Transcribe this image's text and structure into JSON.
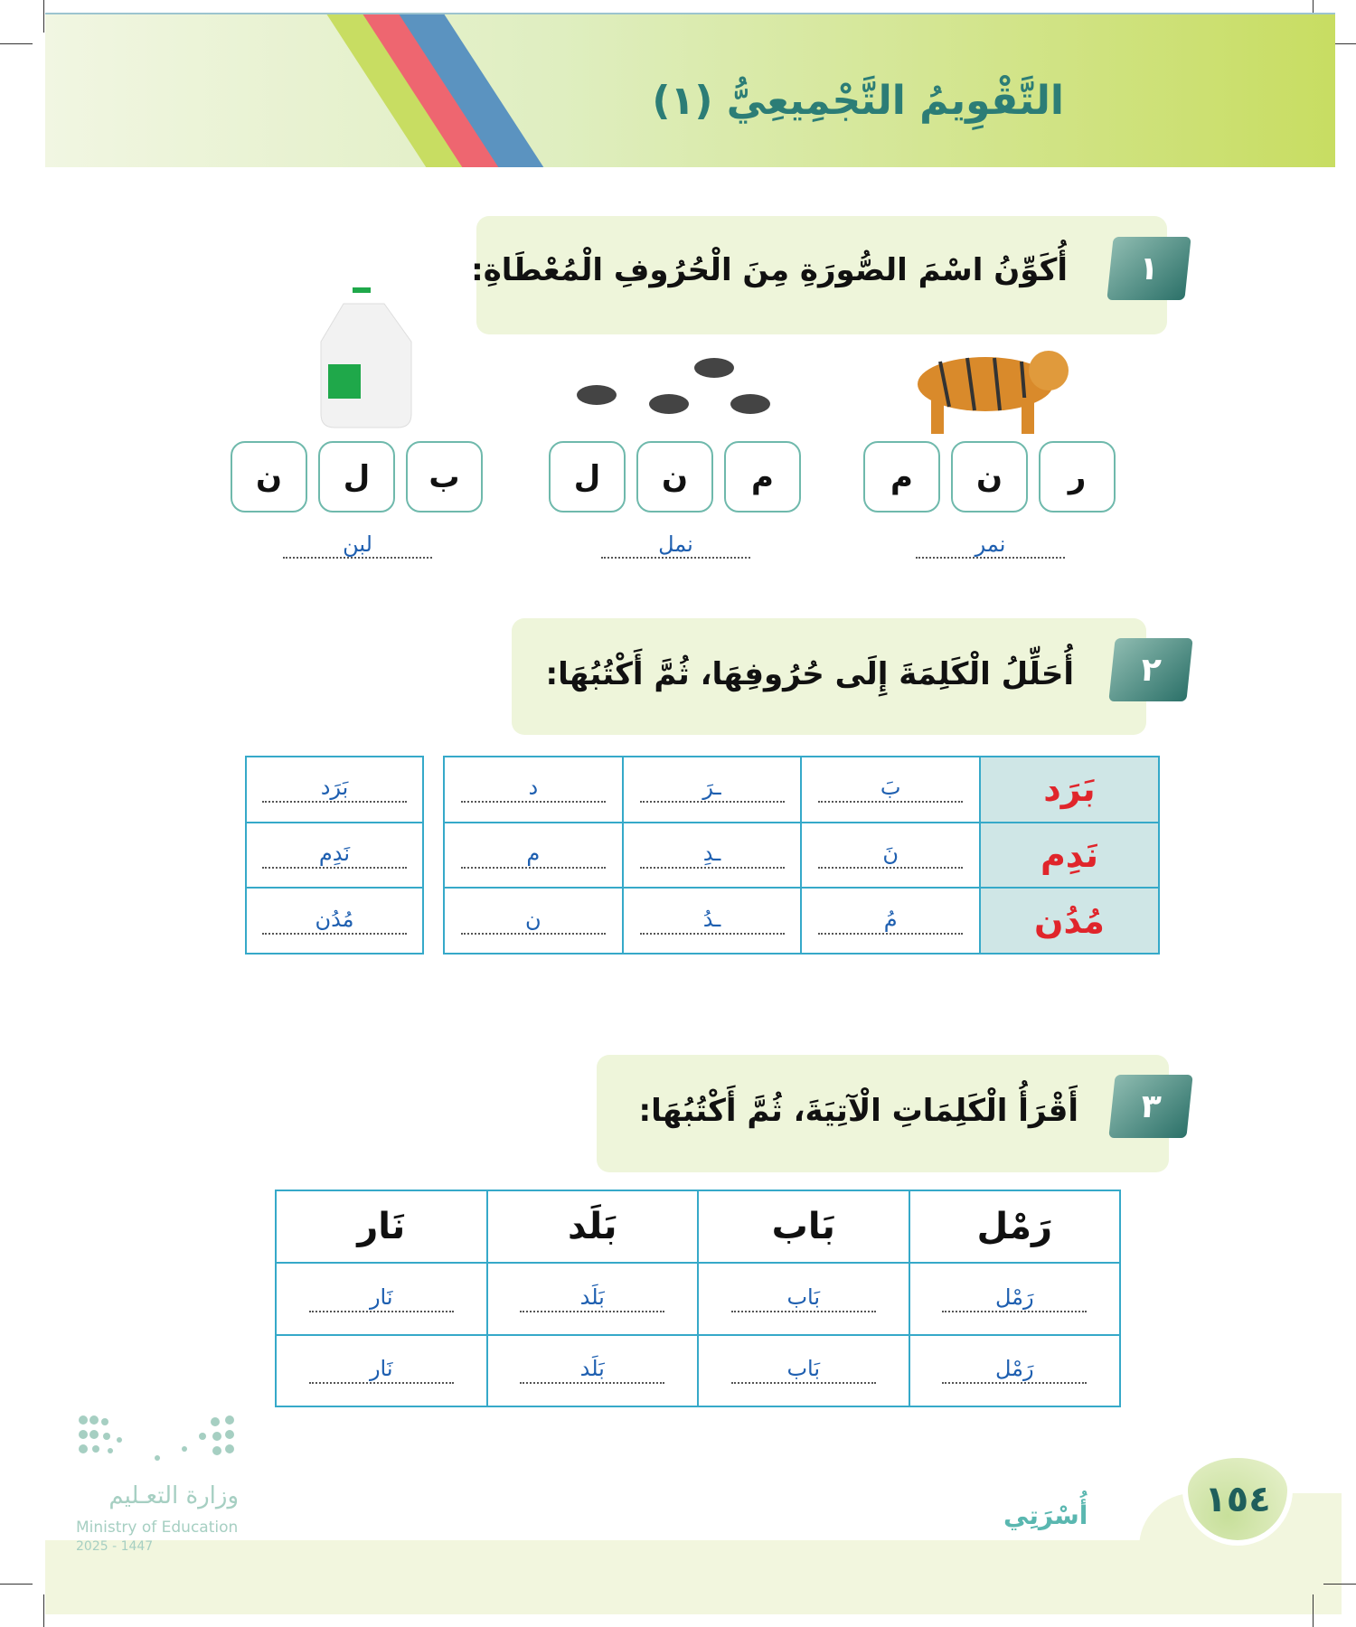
{
  "header": {
    "title": "التَّقْوِيمُ التَّجْمِيعِيُّ (١)"
  },
  "q1": {
    "number": "١",
    "instruction": "أُكَوِّنُ اسْمَ الصُّورَةِ مِنَ الْحُرُوفِ الْمُعْطَاةِ:",
    "groups": [
      {
        "picture": "tiger",
        "letters": [
          "ر",
          "ن",
          "م"
        ],
        "answer": "نمر"
      },
      {
        "picture": "ants",
        "letters": [
          "م",
          "ن",
          "ل"
        ],
        "answer": "نمل"
      },
      {
        "picture": "milk-jug",
        "letters": [
          "ب",
          "ل",
          "ن"
        ],
        "answer": "لبن"
      }
    ]
  },
  "q2": {
    "number": "٢",
    "instruction": "أُحَلِّلُ الْكَلِمَةَ إِلَى حُرُوفِهَا، ثُمَّ أَكْتُبُهَا:",
    "rows": [
      {
        "word": "بَرَد",
        "letters": [
          "بَ",
          "ـرَ",
          "د"
        ],
        "written": "بَرَد"
      },
      {
        "word": "نَدِم",
        "letters": [
          "نَ",
          "ـدِ",
          "م"
        ],
        "written": "نَدِم"
      },
      {
        "word": "مُدُن",
        "letters": [
          "مُ",
          "ـدُ",
          "ن"
        ],
        "written": "مُدُن"
      }
    ]
  },
  "q3": {
    "number": "٣",
    "instruction": "أَقْرَأُ الْكَلِمَاتِ الْآتِيَةَ، ثُمَّ أَكْتُبُهَا:",
    "headers": [
      "رَمْل",
      "بَاب",
      "بَلَد",
      "نَار"
    ],
    "rows": [
      [
        "رَمْل",
        "بَاب",
        "بَلَد",
        "نَار"
      ],
      [
        "رَمْل",
        "بَاب",
        "بَلَد",
        "نَار"
      ]
    ]
  },
  "footer": {
    "page_number": "١٥٤",
    "unit": "أُسْرَتِي",
    "ministry_ar": "وزارة التعـليم",
    "ministry_en": "Ministry of Education",
    "year": "2025 - 1447"
  },
  "colors": {
    "teal": "#2c7d76",
    "answer_blue": "#1e5fb0",
    "word_red": "#e0252b",
    "border": "#36a9c9"
  }
}
